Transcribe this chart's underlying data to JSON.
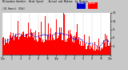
{
  "bg_color": "#c8c8c8",
  "plot_bg": "#ffffff",
  "actual_color": "#ff0000",
  "median_color": "#0000cc",
  "ylim": [
    0,
    15
  ],
  "yticks": [
    3,
    6,
    9,
    12,
    15
  ],
  "n_points": 1440,
  "seed": 42
}
